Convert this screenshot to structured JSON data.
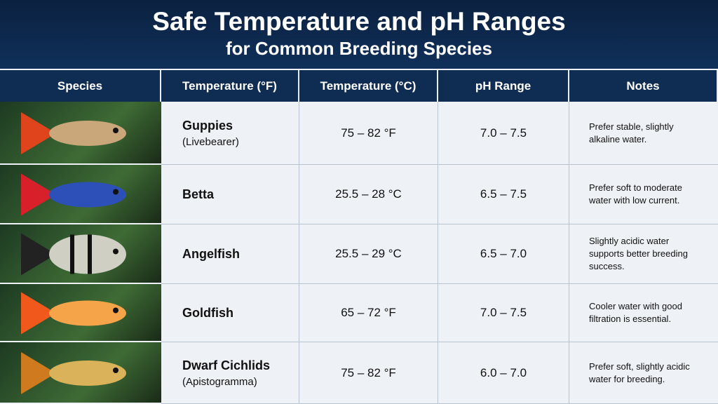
{
  "header": {
    "title": "Safe Temperature and pH Ranges",
    "subtitle": "for Common Breeding Species"
  },
  "table": {
    "columns": [
      "Species",
      "Temperature (°F)",
      "Temperature (°C)",
      "pH Range",
      "Notes"
    ],
    "rows": [
      {
        "name": "Guppies",
        "sub": "(Livebearer)",
        "temperature": "75 – 82 °F",
        "ph": "7.0 – 7.5",
        "notes": [
          "Prefer stable, slightly",
          "alkaline water."
        ]
      },
      {
        "name": "Betta",
        "temperature": "25.5 – 28 °C",
        "ph": "6.5 – 7.5",
        "notes": [
          "Prefer soft to moderate",
          "water with low current."
        ]
      },
      {
        "name": "Angelfish",
        "temperature": "25.5 – 29 °C",
        "ph": "6.5 – 7.0",
        "notes": [
          "Slightly acidic water",
          "supports better breeding",
          "success."
        ]
      },
      {
        "name": "Goldfish",
        "temperature": "65 – 72 °F",
        "ph": "7.0 – 7.5",
        "notes": [
          "Cooler water with good",
          "filtration is essential."
        ]
      },
      {
        "name": "Dwarf Cichlids",
        "sub": "(Apistogramma)",
        "temperature": "75 – 82 °F",
        "ph": "6.0 – 7.0",
        "notes": [
          "Prefer soft, slightly acidic",
          "water for breeding."
        ]
      }
    ]
  }
}
